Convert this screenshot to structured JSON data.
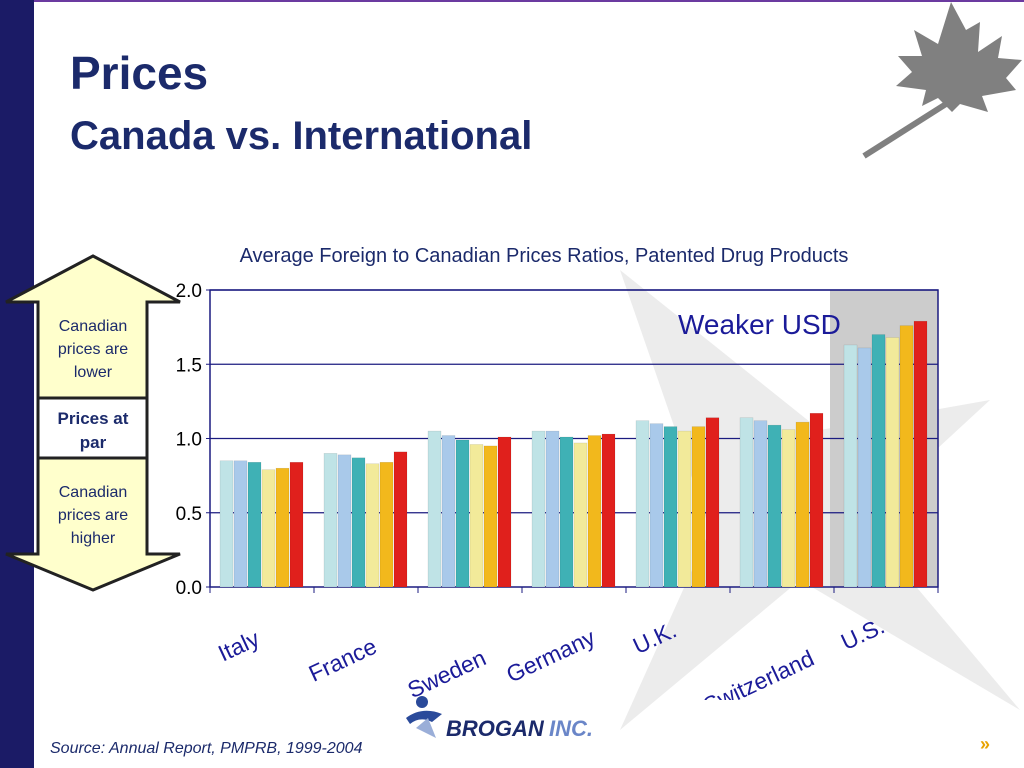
{
  "slide": {
    "title": "Prices",
    "subtitle": "Canada vs. International",
    "source": "Source: Annual Report, PMPRB, 1999-2004",
    "next_symbol": "»"
  },
  "arrow": {
    "top_label": "Canadian prices are lower",
    "middle_label": "Prices at par",
    "bottom_label": "Canadian prices are higher"
  },
  "logo": {
    "brand": "BROGAN",
    "suffix": "INC."
  },
  "chart_data": {
    "type": "bar",
    "title": "Average Foreign to Canadian Prices Ratios, Patented Drug Products",
    "annotation": "Weaker USD",
    "categories": [
      "Italy",
      "France",
      "Sweden",
      "Germany",
      "U.K.",
      "Switzerland",
      "U.S."
    ],
    "series": [
      {
        "values": [
          0.85,
          0.9,
          1.05,
          1.05,
          1.12,
          1.14,
          1.63
        ]
      },
      {
        "values": [
          0.85,
          0.89,
          1.02,
          1.05,
          1.1,
          1.12,
          1.61
        ]
      },
      {
        "values": [
          0.84,
          0.87,
          0.99,
          1.01,
          1.08,
          1.09,
          1.7
        ]
      },
      {
        "values": [
          0.79,
          0.83,
          0.96,
          0.97,
          1.05,
          1.06,
          1.68
        ]
      },
      {
        "values": [
          0.8,
          0.84,
          0.95,
          1.02,
          1.08,
          1.11,
          1.76
        ]
      },
      {
        "values": [
          0.84,
          0.91,
          1.01,
          1.03,
          1.14,
          1.17,
          1.79
        ]
      }
    ],
    "series_colors": [
      "#bfe3e6",
      "#a9c9ea",
      "#3fb1b5",
      "#f2ea9a",
      "#f2b81c",
      "#e0201c"
    ],
    "yticks": [
      "0.0",
      "0.5",
      "1.0",
      "1.5",
      "2.0"
    ],
    "ylim": [
      0,
      2.0
    ],
    "grid": true,
    "highlighted_category": "U.S."
  }
}
